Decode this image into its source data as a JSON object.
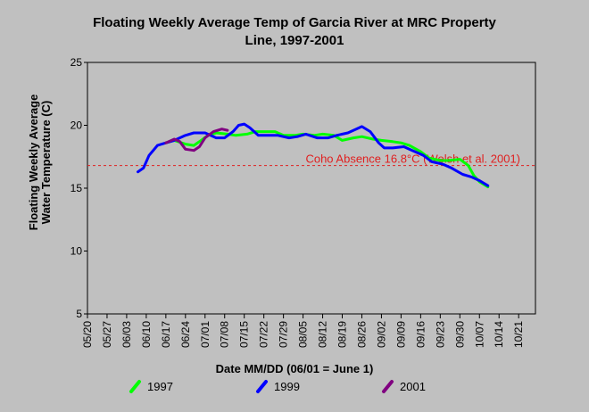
{
  "chart_data": {
    "type": "line",
    "title_lines": [
      "Floating Weekly Average Temp of Garcia River at  MRC Property",
      "Line, 1997-2001"
    ],
    "xlabel": "Date MM/DD (06/01 = June 1)",
    "ylabel_lines": [
      "Floating Weekly Average",
      "Water Temperature (C)"
    ],
    "xlim": [
      "05/20",
      "10/27"
    ],
    "ylim": [
      5,
      25
    ],
    "yticks": [
      5,
      10,
      15,
      20,
      25
    ],
    "xticks": [
      "05/20",
      "05/27",
      "06/03",
      "06/10",
      "06/17",
      "06/24",
      "07/01",
      "07/08",
      "07/15",
      "07/22",
      "07/29",
      "08/05",
      "08/12",
      "08/19",
      "08/26",
      "09/02",
      "09/09",
      "09/16",
      "09/23",
      "09/30",
      "10/07",
      "10/14",
      "10/21"
    ],
    "grid": false,
    "legend_position": "bottom",
    "reference_line": {
      "value": 16.8,
      "label": "Coho Absence 16.8°C (Welsh et al. 2001)",
      "color": "#e02020"
    },
    "series": [
      {
        "name": "1997",
        "color": "#00ff00",
        "points": [
          [
            "06/17",
            18.6
          ],
          [
            "06/20",
            18.8
          ],
          [
            "06/24",
            18.5
          ],
          [
            "06/27",
            18.4
          ],
          [
            "06/29",
            18.7
          ],
          [
            "07/02",
            19.2
          ],
          [
            "07/05",
            19.4
          ],
          [
            "07/09",
            19.3
          ],
          [
            "07/12",
            19.2
          ],
          [
            "07/16",
            19.3
          ],
          [
            "07/19",
            19.5
          ],
          [
            "07/22",
            19.5
          ],
          [
            "07/26",
            19.5
          ],
          [
            "07/29",
            19.2
          ],
          [
            "08/02",
            19.2
          ],
          [
            "08/05",
            19.3
          ],
          [
            "08/09",
            19.2
          ],
          [
            "08/12",
            19.3
          ],
          [
            "08/16",
            19.2
          ],
          [
            "08/19",
            18.8
          ],
          [
            "08/23",
            19.0
          ],
          [
            "08/26",
            19.1
          ],
          [
            "08/30",
            18.9
          ],
          [
            "09/02",
            18.8
          ],
          [
            "09/06",
            18.7
          ],
          [
            "09/09",
            18.6
          ],
          [
            "09/12",
            18.4
          ],
          [
            "09/16",
            17.9
          ],
          [
            "09/19",
            17.4
          ],
          [
            "09/23",
            17.2
          ],
          [
            "09/26",
            17.2
          ],
          [
            "09/30",
            17.3
          ],
          [
            "10/03",
            16.8
          ],
          [
            "10/05",
            16.0
          ],
          [
            "10/07",
            15.5
          ],
          [
            "10/10",
            15.1
          ]
        ]
      },
      {
        "name": "1999",
        "color": "#0000ff",
        "points": [
          [
            "06/07",
            16.3
          ],
          [
            "06/09",
            16.6
          ],
          [
            "06/11",
            17.6
          ],
          [
            "06/14",
            18.4
          ],
          [
            "06/17",
            18.6
          ],
          [
            "06/20",
            18.8
          ],
          [
            "06/24",
            19.2
          ],
          [
            "06/27",
            19.4
          ],
          [
            "07/01",
            19.4
          ],
          [
            "07/05",
            19.0
          ],
          [
            "07/08",
            19.0
          ],
          [
            "07/11",
            19.5
          ],
          [
            "07/13",
            20.0
          ],
          [
            "07/15",
            20.1
          ],
          [
            "07/17",
            19.8
          ],
          [
            "07/20",
            19.2
          ],
          [
            "07/24",
            19.2
          ],
          [
            "07/27",
            19.2
          ],
          [
            "07/31",
            19.0
          ],
          [
            "08/03",
            19.1
          ],
          [
            "08/06",
            19.3
          ],
          [
            "08/10",
            19.0
          ],
          [
            "08/14",
            19.0
          ],
          [
            "08/17",
            19.2
          ],
          [
            "08/21",
            19.4
          ],
          [
            "08/24",
            19.7
          ],
          [
            "08/26",
            19.9
          ],
          [
            "08/29",
            19.5
          ],
          [
            "09/01",
            18.6
          ],
          [
            "09/03",
            18.2
          ],
          [
            "09/06",
            18.2
          ],
          [
            "09/10",
            18.3
          ],
          [
            "09/13",
            18.0
          ],
          [
            "09/17",
            17.6
          ],
          [
            "09/20",
            17.1
          ],
          [
            "09/24",
            16.9
          ],
          [
            "09/27",
            16.6
          ],
          [
            "10/01",
            16.1
          ],
          [
            "10/04",
            15.9
          ],
          [
            "10/07",
            15.6
          ],
          [
            "10/10",
            15.2
          ]
        ]
      },
      {
        "name": "2001",
        "color": "#800080",
        "points": [
          [
            "06/17",
            18.6
          ],
          [
            "06/20",
            18.9
          ],
          [
            "06/22",
            18.7
          ],
          [
            "06/24",
            18.1
          ],
          [
            "06/27",
            18.0
          ],
          [
            "06/29",
            18.3
          ],
          [
            "07/01",
            19.0
          ],
          [
            "07/04",
            19.5
          ],
          [
            "07/07",
            19.7
          ],
          [
            "07/09",
            19.6
          ]
        ]
      }
    ]
  }
}
